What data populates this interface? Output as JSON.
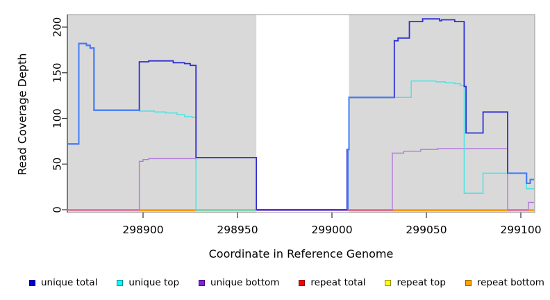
{
  "chart_data": {
    "type": "line",
    "subtype": "step-after-coverage",
    "title": "",
    "xlabel": "Coordinate in Reference Genome",
    "ylabel": "Read Coverage Depth",
    "xlim": [
      298860,
      299107
    ],
    "ylim": [
      -3,
      214
    ],
    "x_ticks": [
      298900,
      298950,
      299000,
      299050,
      299100
    ],
    "y_ticks": [
      0,
      50,
      100,
      150,
      200
    ],
    "grid": "off",
    "plot_bg": "#d9d9d9",
    "masked_region": {
      "x1": 298960,
      "x2": 299009,
      "color": "#ffffff"
    },
    "series": [
      {
        "name": "repeat total",
        "color": "#ff0000",
        "width": 1.2,
        "points": [
          [
            298860,
            0
          ],
          [
            299107,
            0
          ]
        ]
      },
      {
        "name": "repeat top",
        "color": "#ffff00",
        "width": 1.2,
        "points": [
          [
            298860,
            0
          ],
          [
            299107,
            0
          ]
        ]
      },
      {
        "name": "repeat bottom",
        "color": "#ffa500",
        "width": 1.2,
        "points": [
          [
            298860,
            0
          ],
          [
            299107,
            0
          ]
        ]
      },
      {
        "name": "unique bottom",
        "color": "#b578dc",
        "width": 1.4,
        "points": [
          [
            298860,
            0
          ],
          [
            298898,
            53
          ],
          [
            298900,
            55
          ],
          [
            298903,
            56
          ],
          [
            298928,
            57
          ],
          [
            298960,
            0
          ],
          [
            299032,
            62
          ],
          [
            299038,
            64
          ],
          [
            299047,
            66
          ],
          [
            299056,
            67
          ],
          [
            299093,
            0
          ],
          [
            299104,
            8
          ],
          [
            299107,
            8
          ]
        ]
      },
      {
        "name": "unique top",
        "color": "#49e4e4",
        "width": 1.5,
        "points": [
          [
            298860,
            72
          ],
          [
            298866,
            182
          ],
          [
            298870,
            180
          ],
          [
            298872,
            177
          ],
          [
            298874,
            109
          ],
          [
            298898,
            108
          ],
          [
            298906,
            107
          ],
          [
            298912,
            106
          ],
          [
            298918,
            104
          ],
          [
            298922,
            102
          ],
          [
            298926,
            101
          ],
          [
            298928,
            0
          ],
          [
            299008,
            66
          ],
          [
            299009,
            123
          ],
          [
            299042,
            141
          ],
          [
            299055,
            140
          ],
          [
            299060,
            139
          ],
          [
            299065,
            138
          ],
          [
            299068,
            136
          ],
          [
            299070,
            18
          ],
          [
            299080,
            40
          ],
          [
            299103,
            23
          ],
          [
            299107,
            23
          ]
        ]
      },
      {
        "name": "unique total",
        "color": "#2e2ed4",
        "width": 1.8,
        "points": [
          [
            298860,
            72
          ],
          [
            298866,
            182
          ],
          [
            298870,
            180
          ],
          [
            298872,
            177
          ],
          [
            298874,
            109
          ],
          [
            298898,
            162
          ],
          [
            298903,
            163
          ],
          [
            298916,
            161
          ],
          [
            298922,
            160
          ],
          [
            298925,
            158
          ],
          [
            298928,
            57
          ],
          [
            298960,
            0
          ],
          [
            299008,
            66
          ],
          [
            299009,
            123
          ],
          [
            299033,
            185
          ],
          [
            299035,
            188
          ],
          [
            299041,
            206
          ],
          [
            299048,
            209
          ],
          [
            299057,
            207
          ],
          [
            299058,
            208
          ],
          [
            299065,
            206
          ],
          [
            299070,
            135
          ],
          [
            299071,
            84
          ],
          [
            299080,
            107
          ],
          [
            299093,
            40
          ],
          [
            299103,
            29
          ],
          [
            299105,
            33
          ],
          [
            299107,
            33
          ]
        ]
      }
    ],
    "overlap_segments": [
      {
        "name": "total-top-overlap-left",
        "color": "#3f7dfa",
        "width": 2,
        "points": [
          [
            298860,
            72
          ],
          [
            298866,
            182
          ],
          [
            298870,
            180
          ],
          [
            298872,
            177
          ],
          [
            298874,
            109
          ],
          [
            298898,
            109
          ]
        ]
      },
      {
        "name": "total-top-overlap-mid",
        "color": "#3f7dfa",
        "width": 2,
        "points": [
          [
            299008,
            0
          ],
          [
            299008.5,
            66
          ],
          [
            299009,
            123
          ],
          [
            299033,
            123
          ]
        ]
      },
      {
        "name": "total-top-overlap-right",
        "color": "#3f7dfa",
        "width": 2,
        "points": [
          [
            299093,
            40
          ],
          [
            299103,
            29
          ],
          [
            299105,
            33
          ],
          [
            299107,
            33
          ]
        ]
      }
    ],
    "zero_line_segments": [
      {
        "x1": 298860,
        "x2": 298898,
        "color": "#e87f9f"
      },
      {
        "x1": 298898,
        "x2": 298928,
        "color": "#ff9800"
      },
      {
        "x1": 298928,
        "x2": 298960,
        "color": "#8fd4a8"
      },
      {
        "x1": 298960,
        "x2": 299008,
        "color": "#b578dc"
      },
      {
        "x1": 299008,
        "x2": 299033,
        "color": "#e86a78"
      },
      {
        "x1": 299033,
        "x2": 299093,
        "color": "#ff9800"
      },
      {
        "x1": 299093,
        "x2": 299104,
        "color": "#e87f9f"
      },
      {
        "x1": 299104,
        "x2": 299107,
        "color": "#ffa500"
      }
    ],
    "axis_color": "#404040",
    "box_color": "#999999"
  },
  "legend": {
    "items": [
      {
        "label": "unique total",
        "color": "#0000cd",
        "border": "#00008b"
      },
      {
        "label": "unique top",
        "color": "#00ffff",
        "border": "#008b8b"
      },
      {
        "label": "unique bottom",
        "color": "#7d26cd",
        "border": "#4b0082"
      },
      {
        "label": "repeat total",
        "color": "#ff0000",
        "border": "#8b0000"
      },
      {
        "label": "repeat top",
        "color": "#ffff00",
        "border": "#8b8b00"
      },
      {
        "label": "repeat bottom",
        "color": "#ffa500",
        "border": "#8b5a00"
      }
    ]
  }
}
